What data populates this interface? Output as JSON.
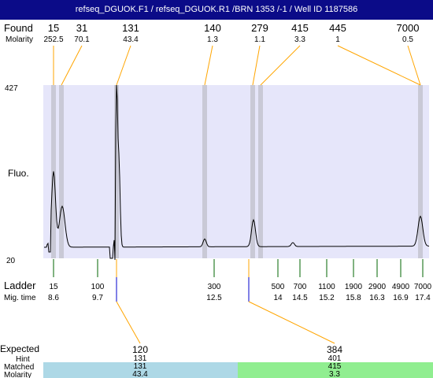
{
  "header": {
    "title": "refseq_DGUOK.F1 / refseq_DGUOK.R1 /BRN 1353 /-1 / Well ID 1187586"
  },
  "labels": {
    "found": "Found",
    "molarity": "Molarity",
    "fluo": "Fluo.",
    "ladder": "Ladder",
    "mig_time": "Mig. time",
    "expected": "Expected",
    "hint": "Hint",
    "matched": "Matched",
    "molarity_bottom": "Molarity",
    "y_max": "427",
    "y_min": "20"
  },
  "found_peaks": [
    {
      "size": "15",
      "molarity": "252.5"
    },
    {
      "size": "31",
      "molarity": "70.1"
    },
    {
      "size": "131",
      "molarity": "43.4"
    },
    {
      "size": "140",
      "molarity": "1.3"
    },
    {
      "size": "279",
      "molarity": "1.1"
    },
    {
      "size": "415",
      "molarity": "3.3"
    },
    {
      "size": "445",
      "molarity": "1"
    },
    {
      "size": "7000",
      "molarity": "0.5"
    }
  ],
  "ladder": [
    {
      "size": "15",
      "mig_time": "8.6"
    },
    {
      "size": "100",
      "mig_time": "9.7"
    },
    {
      "size": "300",
      "mig_time": "12.5"
    },
    {
      "size": "500",
      "mig_time": "14"
    },
    {
      "size": "700",
      "mig_time": "14.5"
    },
    {
      "size": "1100",
      "mig_time": "15.2"
    },
    {
      "size": "1900",
      "mig_time": "15.8"
    },
    {
      "size": "2900",
      "mig_time": "16.3"
    },
    {
      "size": "4900",
      "mig_time": "16.9"
    },
    {
      "size": "7000",
      "mig_time": "17.4"
    }
  ],
  "expected": [
    {
      "expected": "120",
      "hint": "131",
      "matched": "131",
      "molarity": "43.4",
      "color": "#add8e6"
    },
    {
      "expected": "384",
      "hint": "401",
      "matched": "415",
      "molarity": "3.3",
      "color": "#90ee90"
    }
  ],
  "colors": {
    "header_bg": "#0b0b88",
    "plot_bg": "#e6e6fa",
    "band": "#c9c9d6",
    "connector": "#ffa500",
    "ladder_tick": "#006400",
    "expected_tick": "#0000cd"
  }
}
